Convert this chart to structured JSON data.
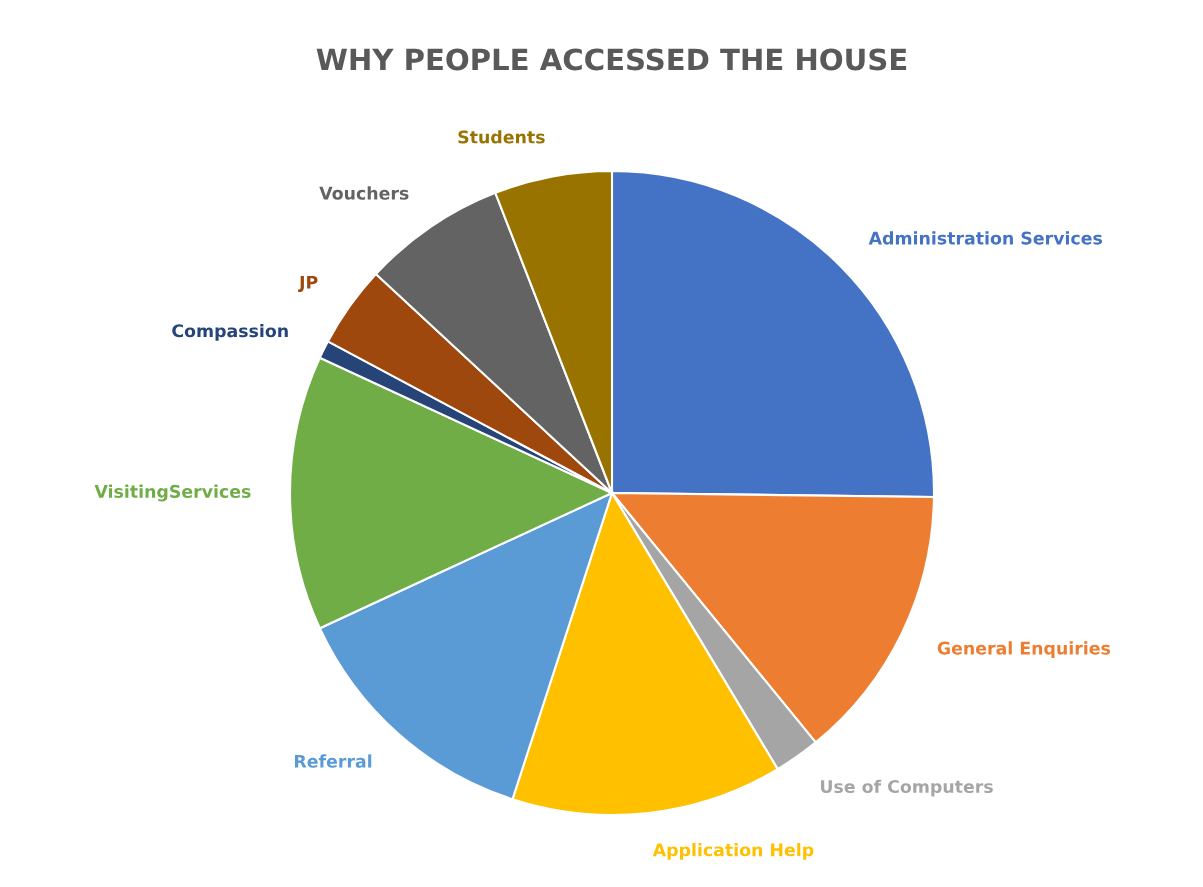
{
  "chart_data": {
    "type": "pie",
    "title": "WHY PEOPLE ACCESSED THE HOUSE",
    "categories": [
      "Administration Services",
      "General Enquiries",
      "Use of Computers",
      "Application Help",
      "Referral",
      "VisitingServices",
      "Compassion",
      "JP",
      "Vouchers",
      "Students"
    ],
    "values": [
      25.2,
      13.9,
      2.3,
      13.6,
      13.1,
      13.8,
      0.9,
      4.1,
      7.2,
      5.9
    ],
    "colors": [
      "#4472c4",
      "#ed7d31",
      "#a5a5a5",
      "#ffc000",
      "#5b9bd5",
      "#70ad47",
      "#264478",
      "#9e480e",
      "#636363",
      "#997300"
    ],
    "legend": false
  }
}
